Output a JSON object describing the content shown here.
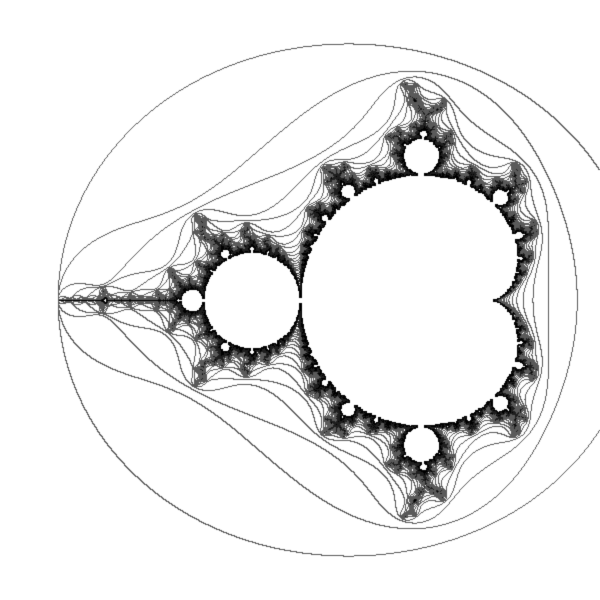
{
  "image": {
    "subject": "mandelbrot-set",
    "background_color": "#ffffff",
    "set_color": "#000000",
    "contour_color": "#000000",
    "view_center": [
      -0.75,
      0.0
    ],
    "view_span": 3.1,
    "max_iterations": 160,
    "contour_levels": [
      3,
      4,
      5,
      6,
      7,
      8,
      9,
      10,
      11,
      12,
      13,
      14,
      15,
      16,
      17,
      18,
      19,
      20,
      22,
      24,
      26,
      28,
      30,
      33,
      36,
      40,
      45,
      50,
      60,
      75,
      100
    ]
  }
}
